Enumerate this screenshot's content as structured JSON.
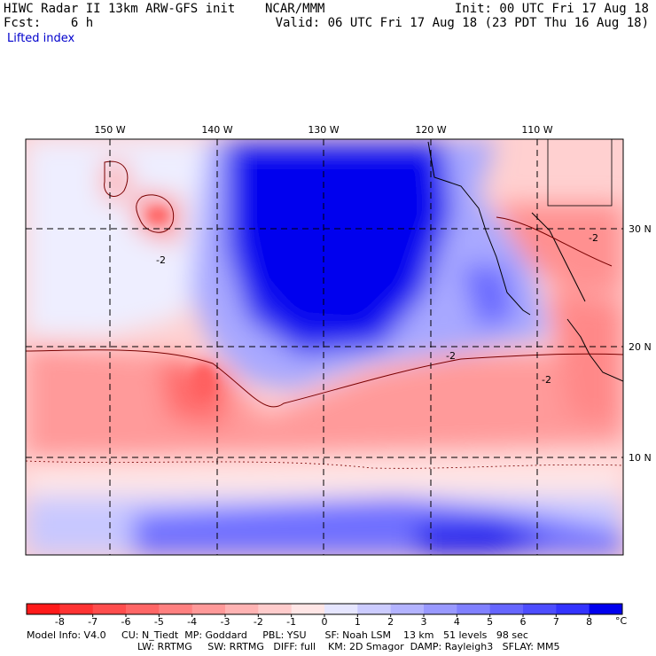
{
  "header": {
    "title": "HIWC Radar II 13km ARW-GFS init    NCAR/MMM",
    "init": "Init: 00 UTC Fri 17 Aug 18",
    "forecast": "Fcst:    6 h",
    "valid": "Valid: 06 UTC Fri 17 Aug 18 (23 PDT Thu 16 Aug 18)",
    "field_name": "Lifted index"
  },
  "map": {
    "lon_labels": [
      "150 W",
      "140 W",
      "130 W",
      "120 W",
      "110 W"
    ],
    "lat_labels": [
      "30 N",
      "20 N",
      "10 N"
    ],
    "contour_labels": [
      "-2",
      "-2",
      "-2",
      "-2"
    ]
  },
  "colorbar": {
    "tick_labels": [
      "-8",
      "-7",
      "-6",
      "-5",
      "-4",
      "-3",
      "-2",
      "-1",
      "0",
      "1",
      "2",
      "3",
      "4",
      "5",
      "6",
      "7",
      "8"
    ],
    "unit": "°C",
    "colors": [
      "#ff1a1a",
      "#ff3333",
      "#ff4d4d",
      "#ff6666",
      "#ff8080",
      "#ff9999",
      "#ffb3b3",
      "#ffcccc",
      "#ffe6e6",
      "#e6e6ff",
      "#ccccff",
      "#b3b3ff",
      "#9999ff",
      "#8080ff",
      "#6666ff",
      "#4d4dff",
      "#3333ff",
      "#0000ee"
    ]
  },
  "footer": {
    "line1": "Model Info: V4.0     CU: N_Tiedt  MP: Goddard     PBL: YSU      SF: Noah LSM    13 km   51 levels   98 sec",
    "line2": "LW: RRTMG     SW: RRTMG   DIFF: full    KM: 2D Smagor  DAMP: Rayleigh3   SFLAY: MM5"
  }
}
